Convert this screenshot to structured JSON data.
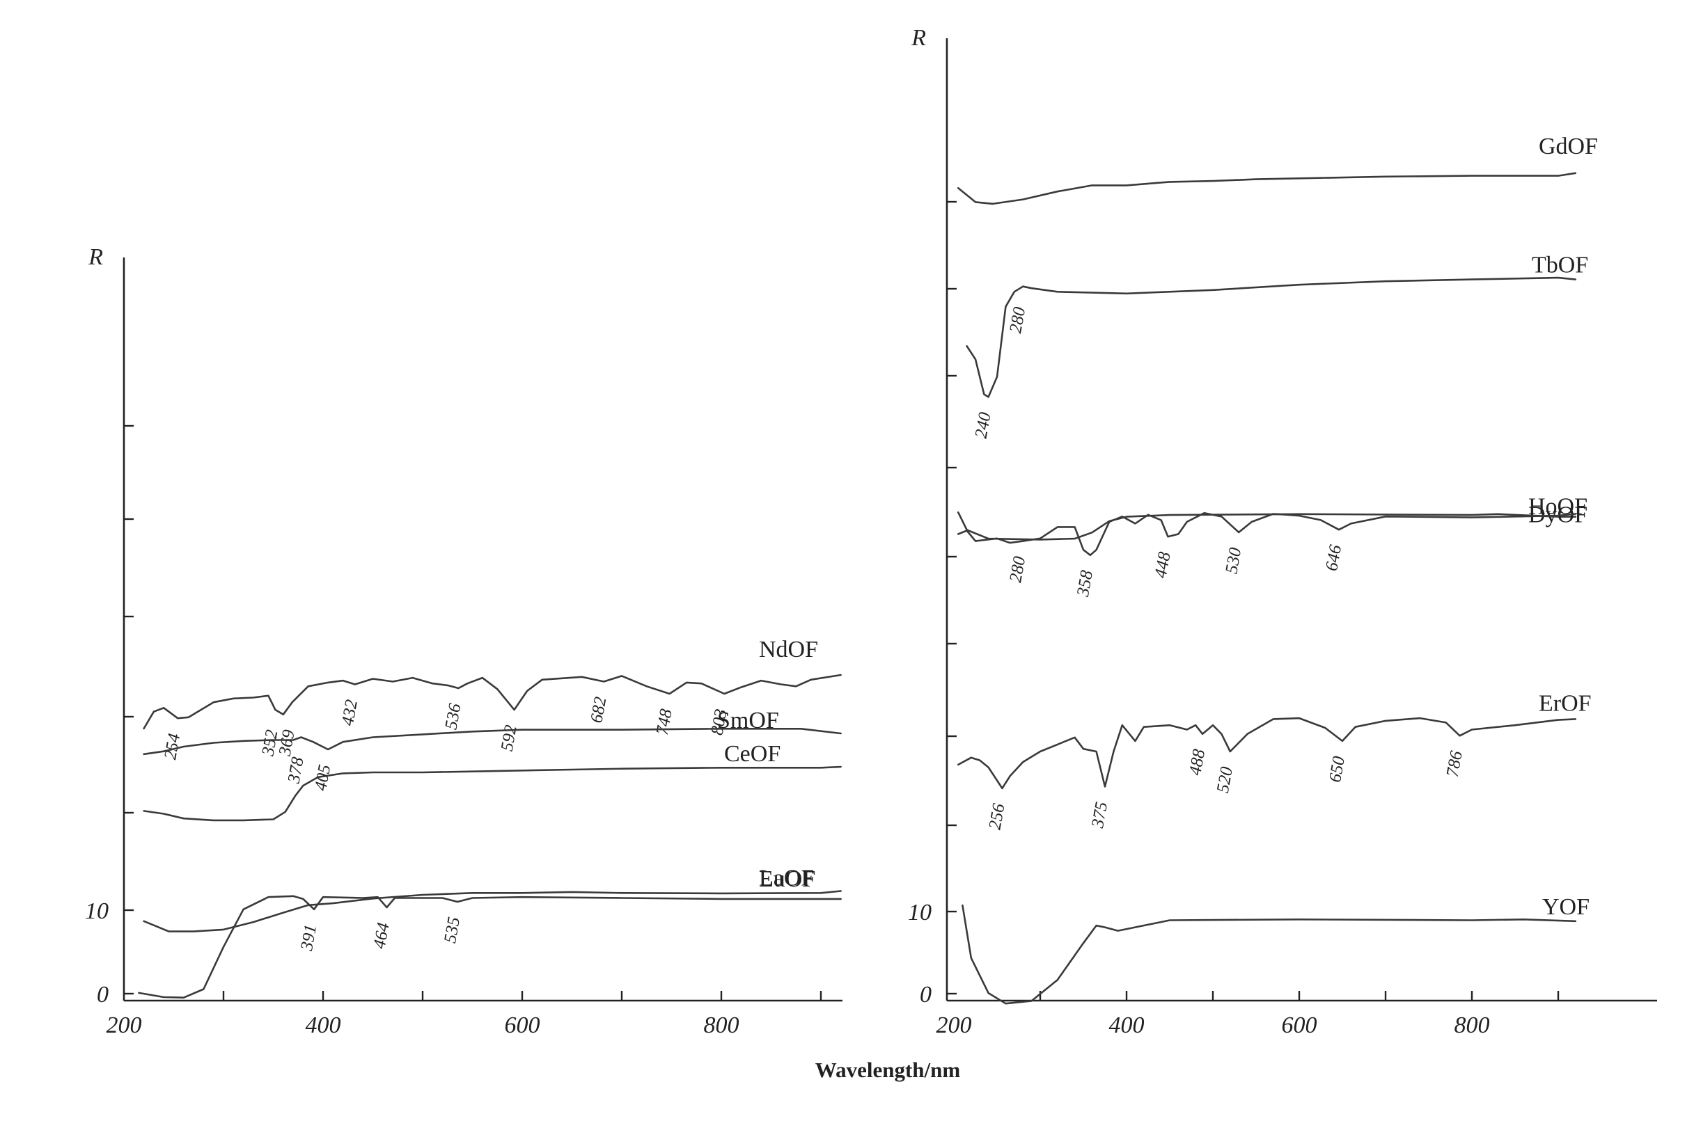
{
  "chart_data": [
    {
      "type": "line",
      "ylabel": "R",
      "x_ticks": [
        "200",
        "400",
        "600",
        "800"
      ],
      "y_ticks": [
        "0",
        "10"
      ],
      "xlim": [
        200,
        930
      ],
      "series": [
        {
          "name": "LaOF",
          "points": [
            [
              220,
              0.75
            ],
            [
              245,
              0.64
            ],
            [
              270,
              0.64
            ],
            [
              300,
              0.66
            ],
            [
              330,
              0.74
            ],
            [
              360,
              0.84
            ],
            [
              385,
              0.92
            ],
            [
              410,
              0.94
            ],
            [
              450,
              0.99
            ],
            [
              500,
              1.03
            ],
            [
              550,
              1.05
            ],
            [
              600,
              1.05
            ],
            [
              650,
              1.06
            ],
            [
              700,
              1.05
            ],
            [
              800,
              1.045
            ],
            [
              900,
              1.05
            ],
            [
              920,
              1.07
            ]
          ],
          "peaks": []
        },
        {
          "name": "CeOF",
          "points": [
            [
              220,
              0.96
            ],
            [
              240,
              0.93
            ],
            [
              260,
              0.88
            ],
            [
              290,
              0.86
            ],
            [
              320,
              0.86
            ],
            [
              350,
              0.87
            ],
            [
              362,
              0.95
            ],
            [
              372,
              1.12
            ],
            [
              380,
              1.23
            ],
            [
              395,
              1.32
            ],
            [
              420,
              1.36
            ],
            [
              450,
              1.37
            ],
            [
              500,
              1.37
            ],
            [
              550,
              1.38
            ],
            [
              600,
              1.39
            ],
            [
              650,
              1.4
            ],
            [
              700,
              1.41
            ],
            [
              800,
              1.42
            ],
            [
              900,
              1.42
            ],
            [
              920,
              1.43
            ]
          ],
          "peaks": []
        },
        {
          "name": "NdOF",
          "points": [
            [
              220,
              0.8
            ],
            [
              230,
              0.98
            ],
            [
              240,
              1.02
            ],
            [
              254,
              0.91
            ],
            [
              265,
              0.92
            ],
            [
              290,
              1.08
            ],
            [
              310,
              1.12
            ],
            [
              330,
              1.13
            ],
            [
              345,
              1.15
            ],
            [
              352,
              1.0
            ],
            [
              360,
              0.95
            ],
            [
              369,
              1.08
            ],
            [
              385,
              1.25
            ],
            [
              405,
              1.29
            ],
            [
              420,
              1.31
            ],
            [
              432,
              1.27
            ],
            [
              450,
              1.33
            ],
            [
              470,
              1.3
            ],
            [
              490,
              1.34
            ],
            [
              510,
              1.28
            ],
            [
              525,
              1.26
            ],
            [
              536,
              1.23
            ],
            [
              545,
              1.28
            ],
            [
              560,
              1.34
            ],
            [
              575,
              1.22
            ],
            [
              592,
              1.0
            ],
            [
              605,
              1.2
            ],
            [
              620,
              1.32
            ],
            [
              660,
              1.35
            ],
            [
              682,
              1.3
            ],
            [
              700,
              1.36
            ],
            [
              725,
              1.25
            ],
            [
              748,
              1.17
            ],
            [
              765,
              1.29
            ],
            [
              780,
              1.28
            ],
            [
              803,
              1.17
            ],
            [
              820,
              1.24
            ],
            [
              840,
              1.31
            ],
            [
              860,
              1.27
            ],
            [
              875,
              1.25
            ],
            [
              890,
              1.32
            ],
            [
              920,
              1.37
            ]
          ],
          "peaks": [
            "254",
            "352",
            "369",
            "432",
            "536",
            "592",
            "682",
            "748",
            "803"
          ]
        },
        {
          "name": "SmOF",
          "points": [
            [
              220,
              0.75
            ],
            [
              240,
              0.78
            ],
            [
              260,
              0.83
            ],
            [
              290,
              0.87
            ],
            [
              320,
              0.89
            ],
            [
              350,
              0.9
            ],
            [
              370,
              0.9
            ],
            [
              378,
              0.93
            ],
            [
              390,
              0.88
            ],
            [
              405,
              0.8
            ],
            [
              420,
              0.88
            ],
            [
              450,
              0.93
            ],
            [
              500,
              0.96
            ],
            [
              550,
              0.99
            ],
            [
              600,
              1.01
            ],
            [
              700,
              1.01
            ],
            [
              800,
              1.02
            ],
            [
              880,
              1.02
            ],
            [
              920,
              0.97
            ]
          ],
          "peaks": [
            "378",
            "405"
          ]
        },
        {
          "name": "EuOF",
          "points": [
            [
              215,
              0.06
            ],
            [
              240,
              0.015
            ],
            [
              260,
              0.01
            ],
            [
              280,
              0.1
            ],
            [
              300,
              0.55
            ],
            [
              320,
              0.95
            ],
            [
              345,
              1.08
            ],
            [
              370,
              1.09
            ],
            [
              380,
              1.06
            ],
            [
              391,
              0.95
            ],
            [
              400,
              1.08
            ],
            [
              440,
              1.07
            ],
            [
              455,
              1.08
            ],
            [
              464,
              0.97
            ],
            [
              472,
              1.07
            ],
            [
              520,
              1.07
            ],
            [
              535,
              1.03
            ],
            [
              550,
              1.07
            ],
            [
              600,
              1.08
            ],
            [
              700,
              1.07
            ],
            [
              800,
              1.06
            ],
            [
              920,
              1.06
            ]
          ],
          "peaks": [
            "391",
            "464",
            "535"
          ]
        }
      ]
    },
    {
      "type": "line",
      "ylabel": "R",
      "x_ticks": [
        "200",
        "400",
        "600",
        "800"
      ],
      "y_ticks": [
        "0",
        "10"
      ],
      "xlim": [
        200,
        930
      ],
      "series": [
        {
          "name": "GdOF",
          "points": [
            [
              205,
              0.8
            ],
            [
              225,
              0.64
            ],
            [
              245,
              0.62
            ],
            [
              280,
              0.67
            ],
            [
              320,
              0.76
            ],
            [
              360,
              0.83
            ],
            [
              400,
              0.83
            ],
            [
              450,
              0.87
            ],
            [
              500,
              0.88
            ],
            [
              550,
              0.9
            ],
            [
              600,
              0.91
            ],
            [
              700,
              0.93
            ],
            [
              800,
              0.94
            ],
            [
              900,
              0.94
            ],
            [
              920,
              0.97
            ]
          ],
          "peaks": []
        },
        {
          "name": "TbOF",
          "points": [
            [
              215,
              1.1
            ],
            [
              225,
              0.95
            ],
            [
              235,
              0.55
            ],
            [
              240,
              0.52
            ],
            [
              250,
              0.75
            ],
            [
              260,
              1.55
            ],
            [
              270,
              1.72
            ],
            [
              280,
              1.78
            ],
            [
              290,
              1.76
            ],
            [
              320,
              1.72
            ],
            [
              400,
              1.7
            ],
            [
              500,
              1.74
            ],
            [
              600,
              1.8
            ],
            [
              700,
              1.84
            ],
            [
              800,
              1.86
            ],
            [
              900,
              1.88
            ],
            [
              920,
              1.86
            ]
          ],
          "peaks": [
            "240",
            "280"
          ]
        },
        {
          "name": "DyOF",
          "points": [
            [
              205,
              0.95
            ],
            [
              215,
              0.75
            ],
            [
              240,
              0.65
            ],
            [
              300,
              0.64
            ],
            [
              340,
              0.65
            ],
            [
              360,
              0.72
            ],
            [
              380,
              0.85
            ],
            [
              400,
              0.9
            ],
            [
              450,
              0.92
            ],
            [
              600,
              0.93
            ],
            [
              800,
              0.92
            ],
            [
              830,
              0.93
            ],
            [
              900,
              0.9
            ],
            [
              920,
              0.9
            ]
          ],
          "peaks": []
        },
        {
          "name": "HoOF",
          "points": [
            [
              205,
              0.98
            ],
            [
              215,
              1.02
            ],
            [
              225,
              0.9
            ],
            [
              250,
              0.93
            ],
            [
              265,
              0.88
            ],
            [
              280,
              0.9
            ],
            [
              300,
              0.93
            ],
            [
              320,
              1.06
            ],
            [
              340,
              1.06
            ],
            [
              350,
              0.8
            ],
            [
              358,
              0.74
            ],
            [
              365,
              0.8
            ],
            [
              380,
              1.12
            ],
            [
              395,
              1.18
            ],
            [
              410,
              1.1
            ],
            [
              425,
              1.2
            ],
            [
              440,
              1.14
            ],
            [
              448,
              0.95
            ],
            [
              460,
              0.98
            ],
            [
              470,
              1.12
            ],
            [
              490,
              1.22
            ],
            [
              510,
              1.18
            ],
            [
              530,
              1.0
            ],
            [
              545,
              1.12
            ],
            [
              570,
              1.21
            ],
            [
              600,
              1.19
            ],
            [
              625,
              1.14
            ],
            [
              646,
              1.03
            ],
            [
              660,
              1.1
            ],
            [
              700,
              1.18
            ],
            [
              800,
              1.17
            ],
            [
              900,
              1.19
            ],
            [
              920,
              1.21
            ]
          ],
          "peaks": [
            "280",
            "358",
            "448",
            "530",
            "646"
          ]
        },
        {
          "name": "ErOF",
          "points": [
            [
              205,
              0.85
            ],
            [
              220,
              0.93
            ],
            [
              230,
              0.9
            ],
            [
              240,
              0.82
            ],
            [
              256,
              0.58
            ],
            [
              265,
              0.72
            ],
            [
              280,
              0.88
            ],
            [
              300,
              1.0
            ],
            [
              320,
              1.08
            ],
            [
              340,
              1.16
            ],
            [
              350,
              1.03
            ],
            [
              365,
              1.0
            ],
            [
              375,
              0.6
            ],
            [
              385,
              1.0
            ],
            [
              395,
              1.3
            ],
            [
              410,
              1.12
            ],
            [
              420,
              1.28
            ],
            [
              450,
              1.3
            ],
            [
              470,
              1.25
            ],
            [
              480,
              1.3
            ],
            [
              488,
              1.2
            ],
            [
              500,
              1.3
            ],
            [
              510,
              1.2
            ],
            [
              520,
              1.0
            ],
            [
              540,
              1.2
            ],
            [
              570,
              1.37
            ],
            [
              600,
              1.38
            ],
            [
              630,
              1.27
            ],
            [
              650,
              1.12
            ],
            [
              665,
              1.28
            ],
            [
              700,
              1.35
            ],
            [
              740,
              1.38
            ],
            [
              770,
              1.33
            ],
            [
              786,
              1.18
            ],
            [
              800,
              1.25
            ],
            [
              850,
              1.3
            ],
            [
              900,
              1.36
            ],
            [
              920,
              1.37
            ]
          ],
          "peaks": [
            "256",
            "375",
            "488",
            "520",
            "650",
            "786"
          ]
        },
        {
          "name": "YOF",
          "points": [
            [
              210,
              1.15
            ],
            [
              220,
              0.55
            ],
            [
              240,
              0.15
            ],
            [
              260,
              0.03
            ],
            [
              290,
              0.06
            ],
            [
              320,
              0.3
            ],
            [
              350,
              0.72
            ],
            [
              365,
              0.92
            ],
            [
              375,
              0.9
            ],
            [
              390,
              0.86
            ],
            [
              400,
              0.88
            ],
            [
              450,
              0.98
            ],
            [
              600,
              0.99
            ],
            [
              800,
              0.98
            ],
            [
              860,
              0.99
            ],
            [
              920,
              0.97
            ]
          ],
          "peaks": []
        }
      ]
    }
  ],
  "figure": {
    "xlabel": "Wavelength/nm"
  }
}
